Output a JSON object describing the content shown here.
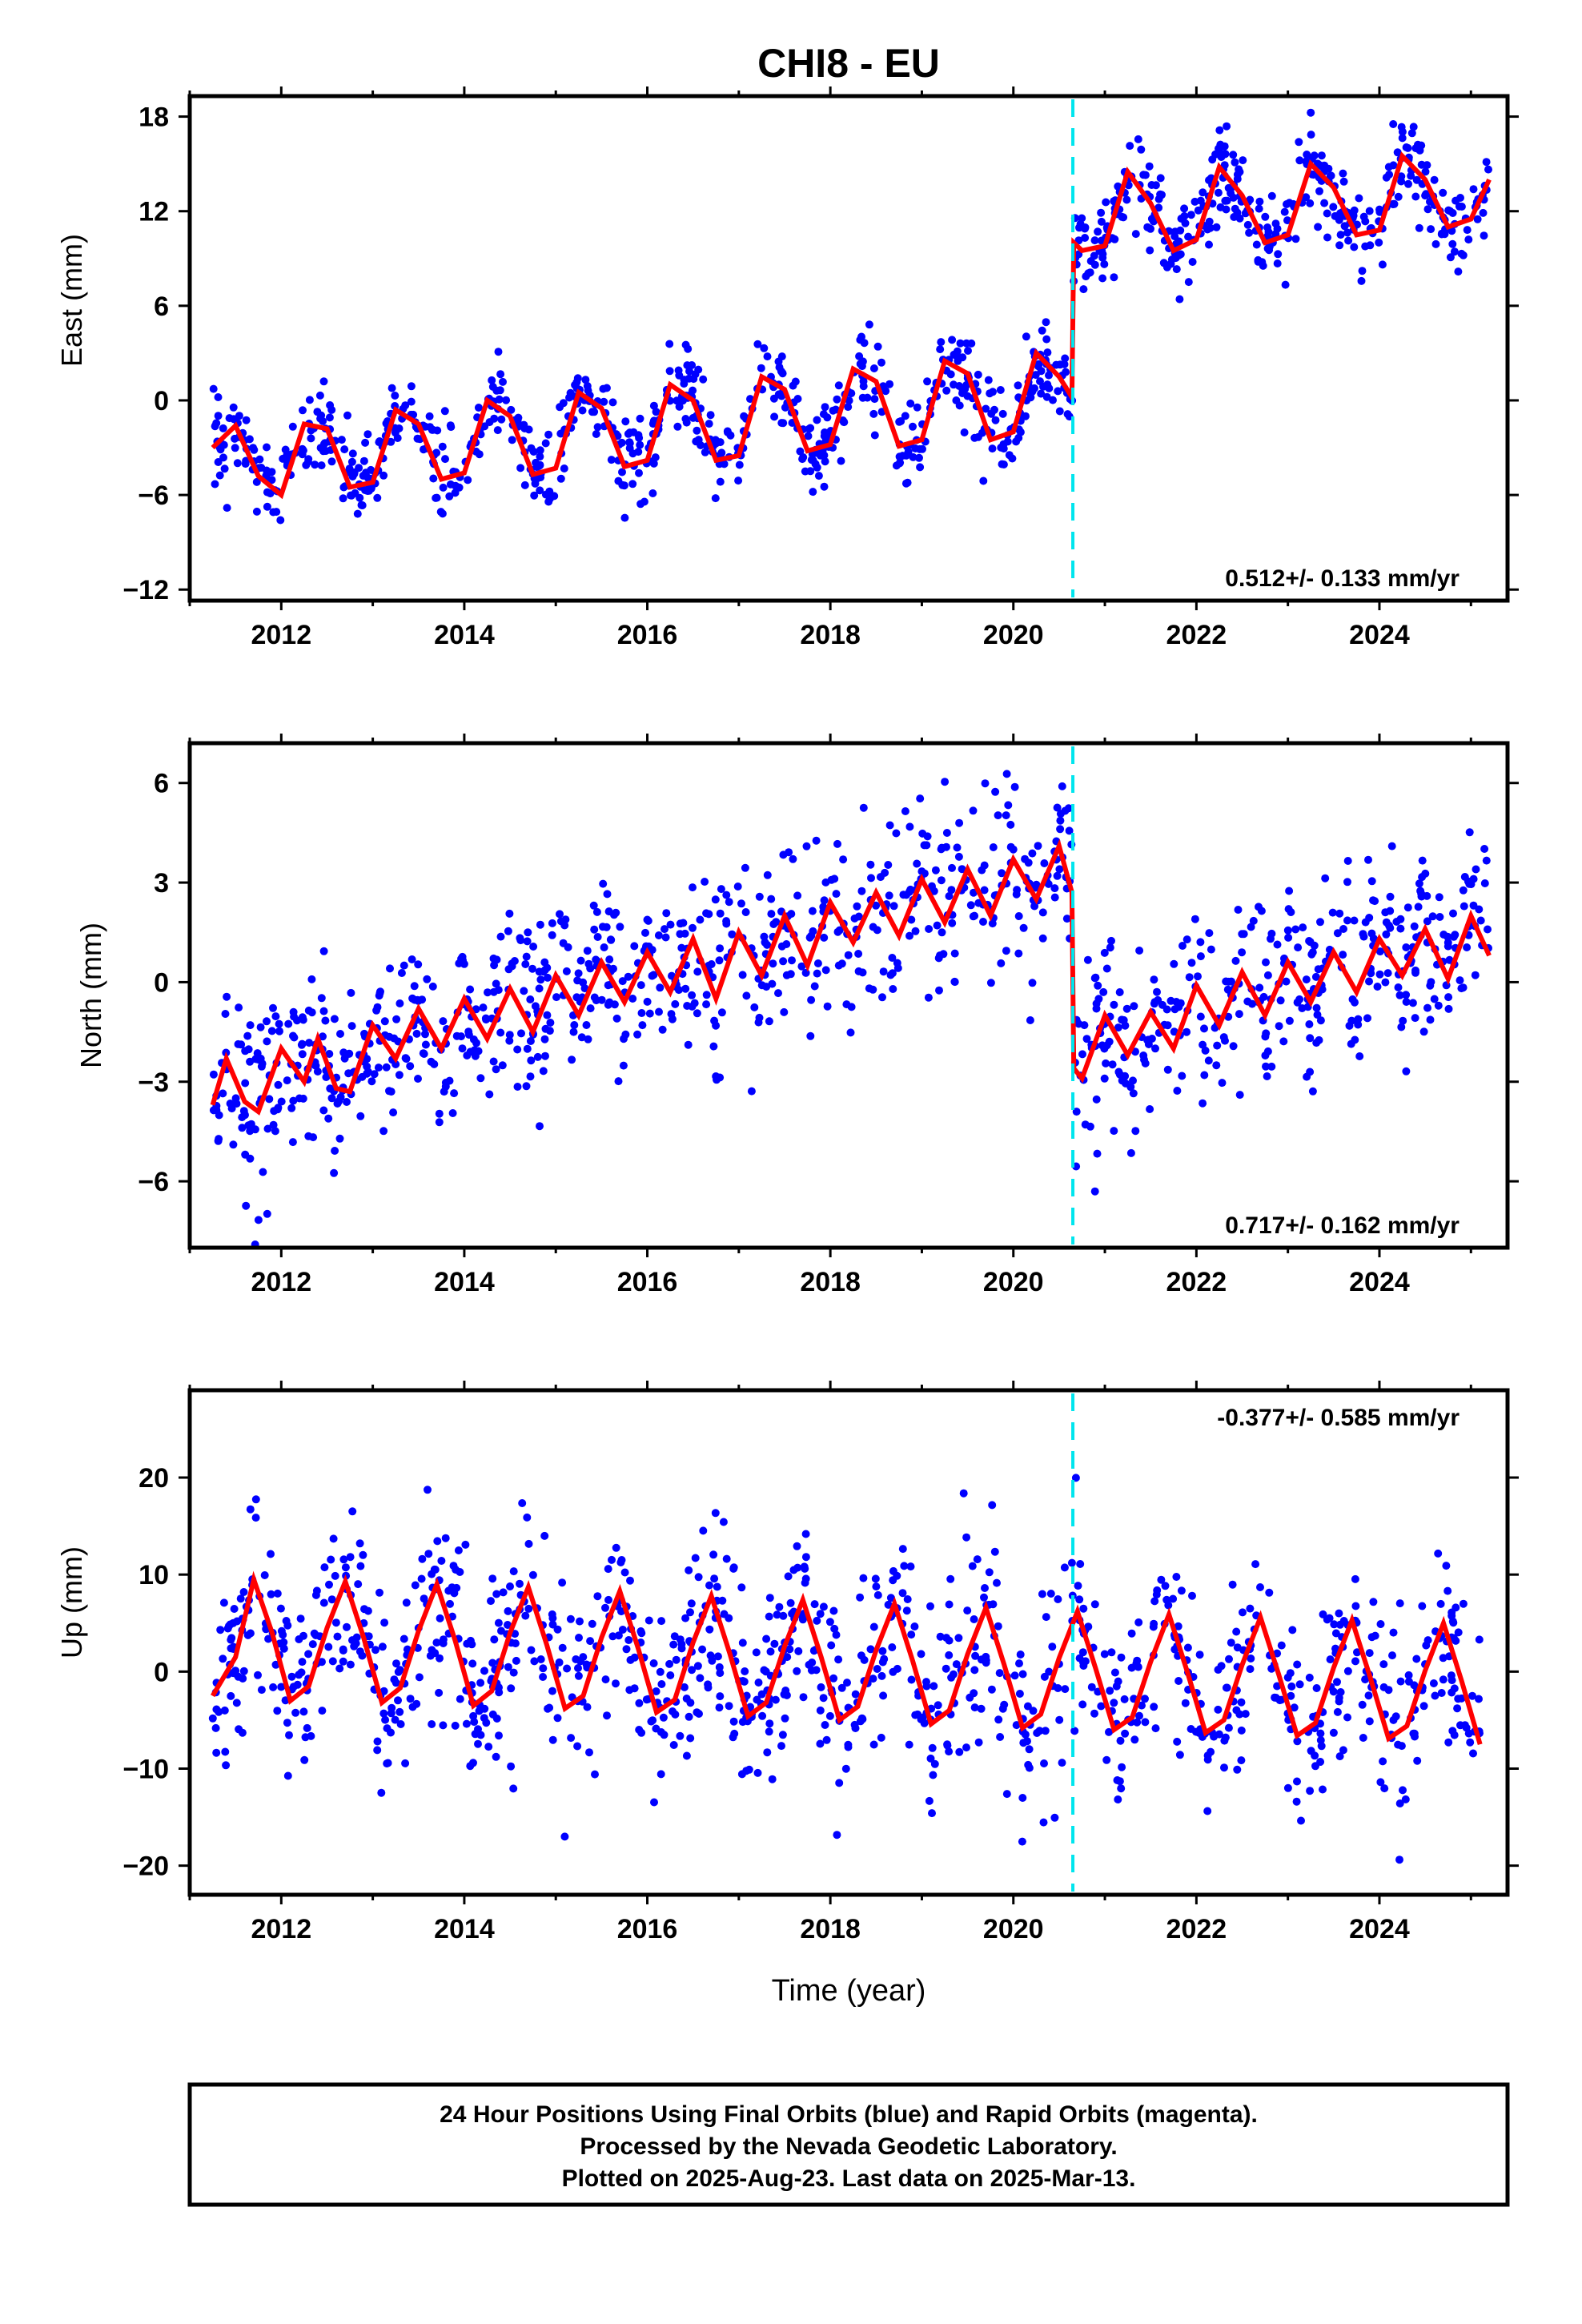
{
  "title": "CHI8 - EU",
  "colors": {
    "points": "#0000ff",
    "model": "#ff0000",
    "break": "#00e5ee",
    "frame": "#000000"
  },
  "chart_data": [
    {
      "type": "scatter",
      "panel": "east",
      "ylabel": "East (mm)",
      "xlabel": "",
      "xlim": [
        2011.0,
        2025.4
      ],
      "ylim": [
        -12.7,
        19.3
      ],
      "x_ticks": [
        2012,
        2014,
        2016,
        2018,
        2020,
        2022,
        2024
      ],
      "y_ticks": [
        -12,
        -6,
        0,
        6,
        12,
        18
      ],
      "y_tick_labels": [
        "−12",
        "−6",
        "0",
        "6",
        "12",
        "18"
      ],
      "rate_label": "0.512+/- 0.133 mm/yr",
      "rate_position": "bottom-right",
      "break_x": 2020.65,
      "series": [
        {
          "x": [
            2011.25,
            2011.5,
            2011.75,
            2012.0,
            2012.25,
            2012.5,
            2012.75,
            2013.0,
            2013.25,
            2013.5,
            2013.75,
            2014.0,
            2014.25,
            2014.5,
            2014.75,
            2015.0,
            2015.25,
            2015.5,
            2015.75,
            2016.0,
            2016.25,
            2016.5,
            2016.75,
            2017.0,
            2017.25,
            2017.5,
            2017.75,
            2018.0,
            2018.25,
            2018.5,
            2018.75,
            2019.0,
            2019.25,
            2019.5,
            2019.75,
            2020.0,
            2020.25,
            2020.5,
            2020.64,
            2020.66,
            2020.75,
            2021.0,
            2021.25,
            2021.5,
            2021.75,
            2022.0,
            2022.25,
            2022.5,
            2022.75,
            2023.0,
            2023.25,
            2023.5,
            2023.75,
            2024.0,
            2024.25,
            2024.5,
            2024.75,
            2025.0,
            2025.2
          ],
          "y": [
            -3.0,
            -1.6,
            -4.8,
            -6.0,
            -1.5,
            -1.8,
            -5.5,
            -5.2,
            -0.6,
            -1.5,
            -5.0,
            -4.6,
            0.0,
            -1.0,
            -4.7,
            -4.3,
            0.5,
            -0.5,
            -4.2,
            -3.8,
            1.0,
            0.0,
            -3.8,
            -3.5,
            1.5,
            0.7,
            -3.2,
            -2.8,
            2.0,
            1.2,
            -2.9,
            -2.5,
            2.5,
            1.7,
            -2.5,
            -2.0,
            3.0,
            1.5,
            0.2,
            10.0,
            9.5,
            9.8,
            14.5,
            12.5,
            9.5,
            10.2,
            14.8,
            13.0,
            10.0,
            10.5,
            15.0,
            13.5,
            10.5,
            10.8,
            15.5,
            14.0,
            11.0,
            11.5,
            14.0
          ]
        }
      ]
    },
    {
      "type": "scatter",
      "panel": "north",
      "ylabel": "North (mm)",
      "xlabel": "",
      "xlim": [
        2011.0,
        2025.4
      ],
      "ylim": [
        -8.0,
        7.2
      ],
      "x_ticks": [
        2012,
        2014,
        2016,
        2018,
        2020,
        2022,
        2024
      ],
      "y_ticks": [
        -6,
        -3,
        0,
        3,
        6
      ],
      "y_tick_labels": [
        "−6",
        "−3",
        "0",
        "3",
        "6"
      ],
      "rate_label": "0.717+/- 0.162 mm/yr",
      "rate_position": "bottom-right",
      "break_x": 2020.65,
      "series": [
        {
          "x": [
            2011.25,
            2011.4,
            2011.6,
            2011.75,
            2012.0,
            2012.25,
            2012.4,
            2012.6,
            2012.75,
            2013.0,
            2013.25,
            2013.5,
            2013.75,
            2014.0,
            2014.25,
            2014.5,
            2014.75,
            2015.0,
            2015.25,
            2015.5,
            2015.75,
            2016.0,
            2016.25,
            2016.5,
            2016.75,
            2017.0,
            2017.25,
            2017.5,
            2017.75,
            2018.0,
            2018.25,
            2018.5,
            2018.75,
            2019.0,
            2019.25,
            2019.5,
            2019.75,
            2020.0,
            2020.25,
            2020.5,
            2020.64,
            2020.66,
            2020.75,
            2021.0,
            2021.25,
            2021.5,
            2021.75,
            2022.0,
            2022.25,
            2022.5,
            2022.75,
            2023.0,
            2023.25,
            2023.5,
            2023.75,
            2024.0,
            2024.25,
            2024.5,
            2024.75,
            2025.0,
            2025.2
          ],
          "y": [
            -3.7,
            -2.3,
            -3.6,
            -3.9,
            -2.0,
            -3.0,
            -1.7,
            -3.2,
            -3.3,
            -1.3,
            -2.3,
            -0.8,
            -2.0,
            -0.5,
            -1.7,
            -0.2,
            -1.5,
            0.2,
            -1.0,
            0.6,
            -0.6,
            0.9,
            -0.3,
            1.3,
            -0.5,
            1.5,
            0.2,
            2.0,
            0.5,
            2.4,
            1.2,
            2.7,
            1.4,
            3.1,
            1.8,
            3.4,
            2.0,
            3.7,
            2.5,
            4.1,
            2.7,
            -2.6,
            -2.9,
            -1.0,
            -2.2,
            -0.9,
            -2.0,
            -0.1,
            -1.3,
            0.3,
            -1.0,
            0.6,
            -0.6,
            0.9,
            -0.3,
            1.3,
            0.2,
            1.6,
            0.1,
            2.0,
            0.8
          ]
        }
      ]
    },
    {
      "type": "scatter",
      "panel": "up",
      "ylabel": "Up (mm)",
      "xlabel": "Time (year)",
      "xlim": [
        2011.0,
        2025.4
      ],
      "ylim": [
        -23,
        29
      ],
      "x_ticks": [
        2012,
        2014,
        2016,
        2018,
        2020,
        2022,
        2024
      ],
      "y_ticks": [
        -20,
        -10,
        0,
        10,
        20
      ],
      "y_tick_labels": [
        "−20",
        "−10",
        "0",
        "10",
        "20"
      ],
      "rate_label": "-0.377+/- 0.585 mm/yr",
      "rate_position": "top-right",
      "break_x": 2020.65,
      "series": [
        {
          "x": [
            2011.25,
            2011.5,
            2011.7,
            2011.9,
            2012.1,
            2012.3,
            2012.5,
            2012.7,
            2012.9,
            2013.1,
            2013.3,
            2013.5,
            2013.7,
            2013.9,
            2014.1,
            2014.3,
            2014.5,
            2014.7,
            2014.9,
            2015.1,
            2015.3,
            2015.5,
            2015.7,
            2015.9,
            2016.1,
            2016.3,
            2016.5,
            2016.7,
            2016.9,
            2017.1,
            2017.3,
            2017.5,
            2017.7,
            2017.9,
            2018.1,
            2018.3,
            2018.5,
            2018.7,
            2018.9,
            2019.1,
            2019.3,
            2019.5,
            2019.7,
            2019.9,
            2020.1,
            2020.3,
            2020.5,
            2020.7,
            2020.9,
            2021.1,
            2021.3,
            2021.5,
            2021.7,
            2021.9,
            2022.1,
            2022.3,
            2022.5,
            2022.7,
            2022.9,
            2023.1,
            2023.3,
            2023.5,
            2023.7,
            2023.9,
            2024.1,
            2024.3,
            2024.5,
            2024.7,
            2024.9,
            2025.1
          ],
          "y": [
            -2.5,
            1.5,
            9.5,
            4.0,
            -3.0,
            -1.5,
            4.5,
            9.3,
            3.5,
            -3.2,
            -1.7,
            4.2,
            9.0,
            3.2,
            -3.5,
            -2.0,
            4.0,
            8.7,
            2.8,
            -3.8,
            -2.5,
            3.5,
            8.3,
            2.4,
            -4.2,
            -2.9,
            3.0,
            7.8,
            1.9,
            -4.6,
            -3.2,
            2.6,
            7.4,
            1.5,
            -5.0,
            -3.6,
            2.2,
            7.0,
            1.1,
            -5.4,
            -4.0,
            1.8,
            6.6,
            0.7,
            -5.8,
            -4.4,
            1.4,
            6.2,
            0.3,
            -6.0,
            -4.7,
            1.0,
            5.9,
            0.0,
            -6.3,
            -5.0,
            0.7,
            5.6,
            -0.3,
            -6.6,
            -5.3,
            0.4,
            5.3,
            -0.6,
            -6.9,
            -5.6,
            0.1,
            5.0,
            -1.0,
            -7.5
          ]
        }
      ]
    }
  ],
  "footer": {
    "line1": "24 Hour Positions Using Final Orbits (blue) and Rapid Orbits (magenta).",
    "line2": "Processed by the Nevada Geodetic Laboratory.",
    "line3": "Plotted on 2025-Aug-23. Last data on 2025-Mar-13."
  }
}
